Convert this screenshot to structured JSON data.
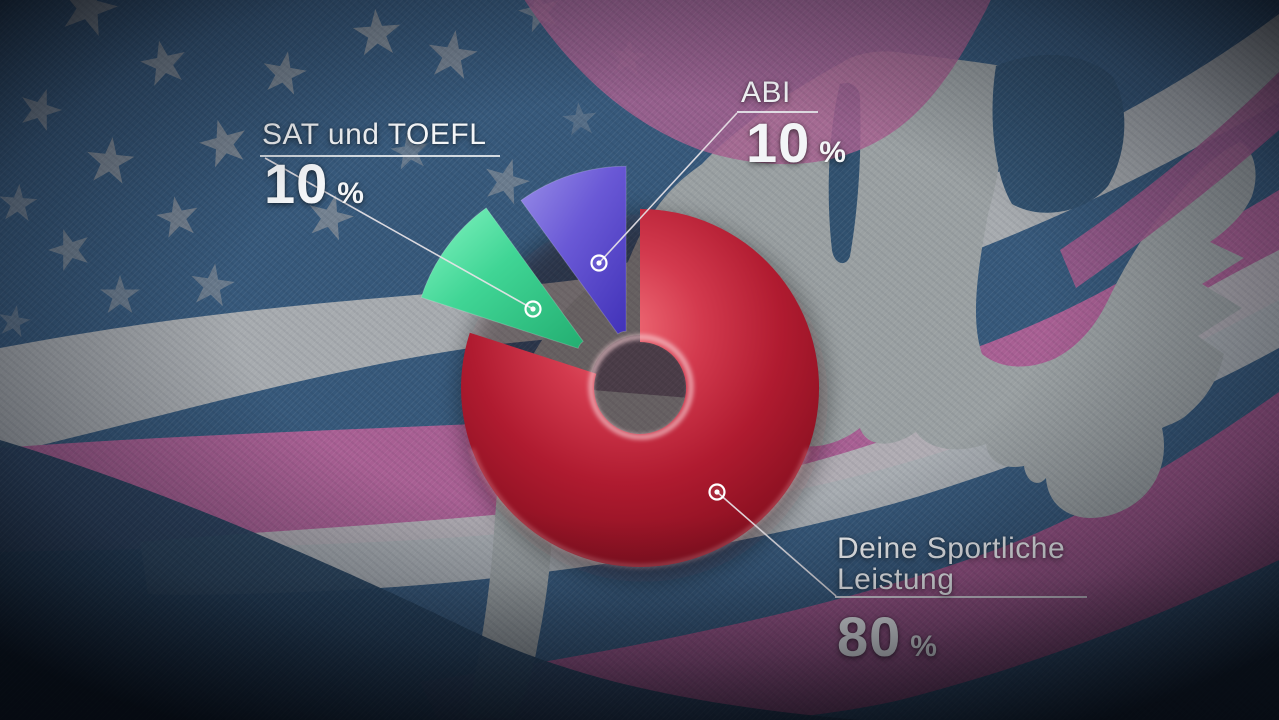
{
  "chart_data": {
    "type": "pie",
    "title": "",
    "donut": true,
    "direction": "clockwise",
    "start_angle_deg": 0,
    "legend_position": "callout-labels",
    "slices": [
      {
        "label": "Deine Sportliche Leistung",
        "value": 80,
        "display": "80 %",
        "color": "#b31b30",
        "exploded": false
      },
      {
        "label": "SAT und TOEFL",
        "value": 10,
        "display": "10 %",
        "color": "#3fd494",
        "exploded": true
      },
      {
        "label": "ABI",
        "value": 10,
        "display": "10 %",
        "color": "#6a59d6",
        "exploded": true
      }
    ]
  },
  "callouts": {
    "sat": {
      "title": "SAT und TOEFL",
      "value": "10",
      "unit": "%"
    },
    "abi": {
      "title": "ABI",
      "value": "10",
      "unit": "%"
    },
    "sport": {
      "title_line1": "Deine Sportliche",
      "title_line2": "Leistung",
      "value": "80",
      "unit": "%"
    }
  },
  "background": {
    "theme": "us-flag-with-usa-map",
    "base_blue": "#36587a",
    "star_color": "#8d939a",
    "stripe_pink": "#a85f93",
    "stripe_gray": "#aeb0b2",
    "map_gray": "#9aa0a2"
  }
}
